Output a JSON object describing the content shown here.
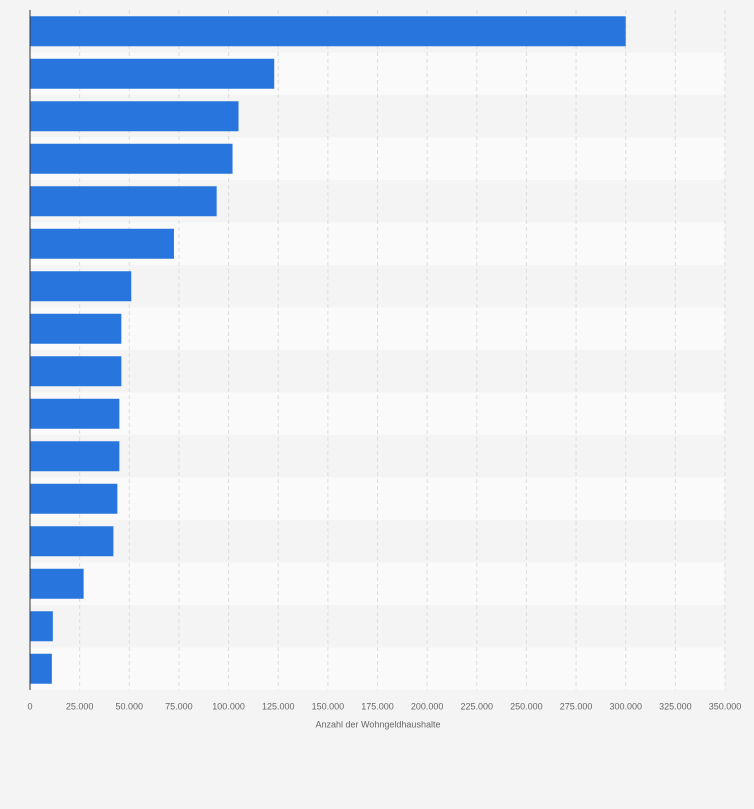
{
  "chart_data": {
    "type": "bar",
    "orientation": "horizontal",
    "x_label": "Anzahl der Wohngeldhaushalte",
    "categories": [
      null,
      null,
      null,
      null,
      null,
      null,
      null,
      null,
      null,
      null,
      null,
      null,
      null,
      null,
      null,
      null
    ],
    "values": [
      300000,
      123000,
      105000,
      102000,
      94000,
      72500,
      51000,
      46000,
      46000,
      45000,
      45000,
      44000,
      42000,
      27000,
      11500,
      11000
    ],
    "color": "#2876dd",
    "xlim": [
      0,
      350000
    ],
    "xticks": [
      0,
      {
        "value": 25000,
        "label": "25.000"
      },
      {
        "value": 50000,
        "label": "50.000"
      },
      {
        "value": 75000,
        "label": "75.000"
      },
      {
        "value": 100000,
        "label": "100.000"
      },
      {
        "value": 125000,
        "label": "125.000"
      },
      {
        "value": 150000,
        "label": "150.000"
      },
      {
        "value": 175000,
        "label": "175.000"
      },
      {
        "value": 200000,
        "label": "200.000"
      },
      {
        "value": 225000,
        "label": "225.000"
      },
      {
        "value": 250000,
        "label": "250.000"
      },
      {
        "value": 275000,
        "label": "275.000"
      },
      {
        "value": 300000,
        "label": "300.000"
      },
      {
        "value": 325000,
        "label": "325.000"
      },
      {
        "value": 350000,
        "label": "350.000"
      }
    ],
    "grid": true
  }
}
